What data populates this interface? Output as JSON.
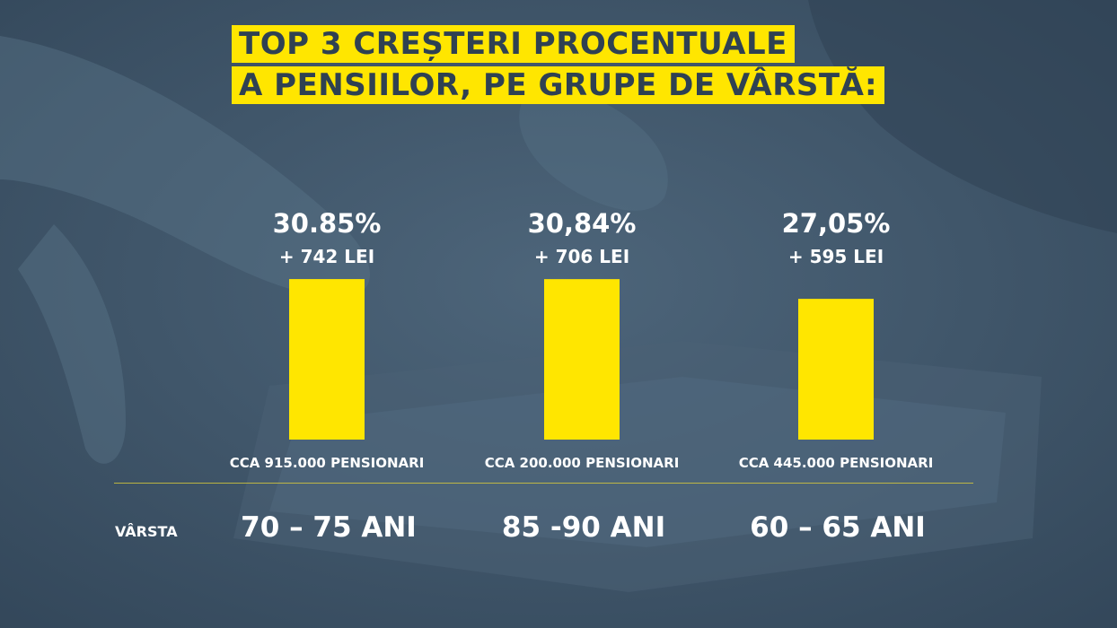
{
  "title": {
    "line1": "TOP 3 CREȘTERI PROCENTUALE",
    "line2": "A PENSIILOR, PE GRUPE DE VÂRSTĂ:"
  },
  "colors": {
    "accent": "#ffe600",
    "background": "#3e5468",
    "text": "#ffffff"
  },
  "row_label": "VÂRSTA",
  "chart_data": {
    "type": "bar",
    "categories": [
      "70 – 75 ANI",
      "85 -90 ANI",
      "60 – 65 ANI"
    ],
    "values": [
      30.85,
      30.84,
      27.05
    ],
    "value_labels": [
      "30.85%",
      "30,84%",
      "27,05%"
    ],
    "increase_labels": [
      "+ 742 LEI",
      "+ 706 LEI",
      "+ 595 LEI"
    ],
    "count_labels": [
      "CCA 915.000 PENSIONARI",
      "CCA 200.000 PENSIONARI",
      "CCA 445.000 PENSIONARI"
    ],
    "title": "TOP 3 CREȘTERI PROCENTUALE A PENSIILOR, PE GRUPE DE VÂRSTĂ:",
    "xlabel": "VÂRSTA",
    "ylabel": "",
    "grid": false
  }
}
